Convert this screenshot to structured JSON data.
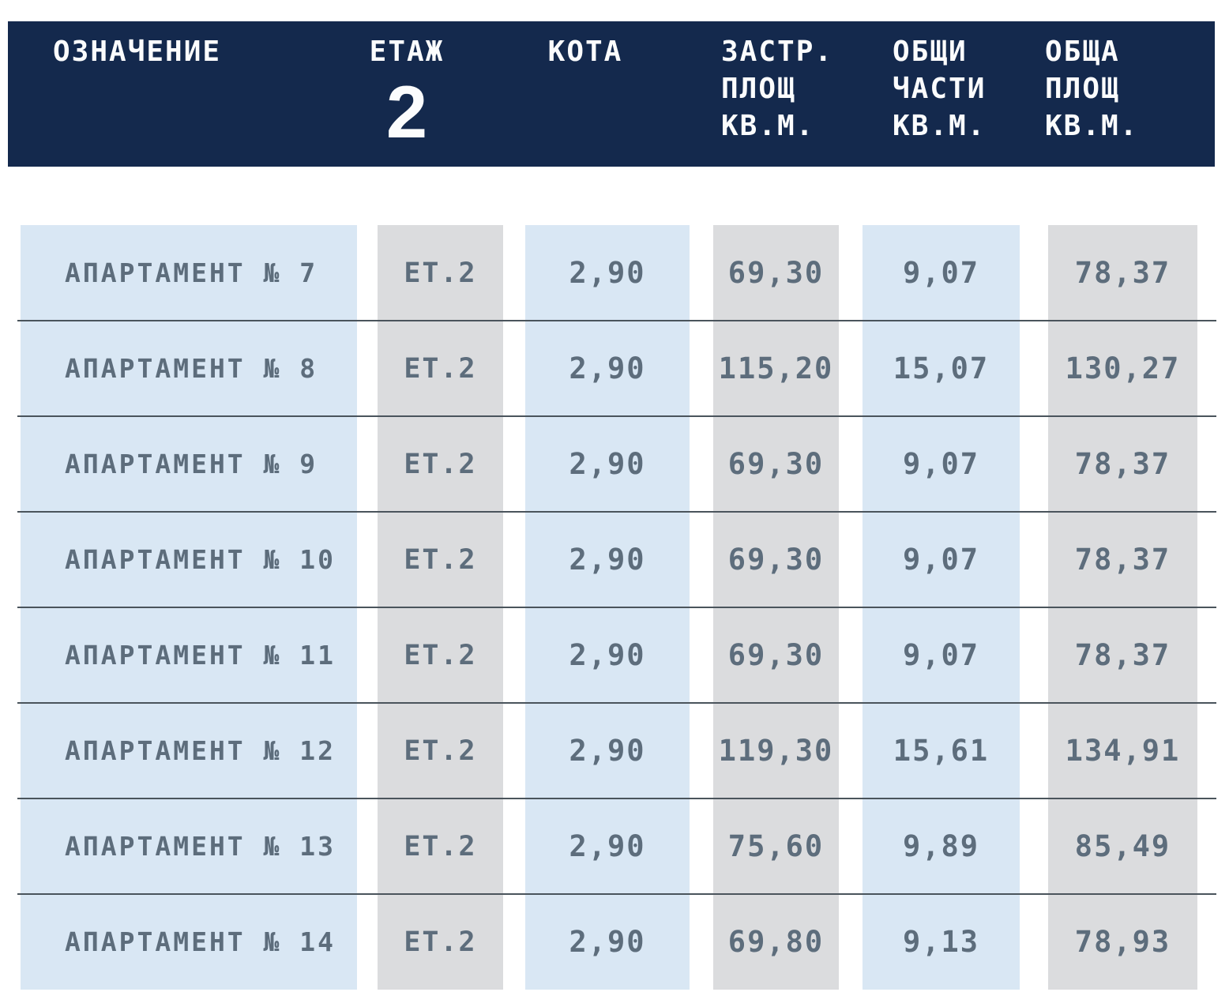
{
  "header": {
    "bg_color": "#14294d",
    "text_color": "#fbfcfd",
    "floor_big_number": "2",
    "col_designation": "ОЗНАЧЕНИЕ",
    "col_floor": "ЕТАЖ",
    "col_kota": "КОТА",
    "col_built_lines": [
      "ЗАСТР.",
      "ПЛОЩ",
      "КВ.М."
    ],
    "col_common_lines": [
      "ОБЩИ",
      "ЧАСТИ",
      "КВ.М."
    ],
    "col_total_lines": [
      "ОБЩА",
      "ПЛОЩ",
      "КВ.М."
    ]
  },
  "table": {
    "row_text_color": "#5d6d7c",
    "band_blue": "#d9e7f4",
    "band_gray": "#dbdcde",
    "divider_color": "#4a545c",
    "rows": [
      {
        "designation": "АПАРТАМЕНТ № 7",
        "floor": "ЕТ.2",
        "kota": "2,90",
        "built": "69,30",
        "common": "9,07",
        "total": "78,37"
      },
      {
        "designation": "АПАРТАМЕНТ № 8",
        "floor": "ЕТ.2",
        "kota": "2,90",
        "built": "115,20",
        "common": "15,07",
        "total": "130,27"
      },
      {
        "designation": "АПАРТАМЕНТ № 9",
        "floor": "ЕТ.2",
        "kota": "2,90",
        "built": "69,30",
        "common": "9,07",
        "total": "78,37"
      },
      {
        "designation": "АПАРТАМЕНТ № 10",
        "floor": "ЕТ.2",
        "kota": "2,90",
        "built": "69,30",
        "common": "9,07",
        "total": "78,37"
      },
      {
        "designation": "АПАРТАМЕНТ № 11",
        "floor": "ЕТ.2",
        "kota": "2,90",
        "built": "69,30",
        "common": "9,07",
        "total": "78,37"
      },
      {
        "designation": "АПАРТАМЕНТ № 12",
        "floor": "ЕТ.2",
        "kota": "2,90",
        "built": "119,30",
        "common": "15,61",
        "total": "134,91"
      },
      {
        "designation": "АПАРТАМЕНТ № 13",
        "floor": "ЕТ.2",
        "kota": "2,90",
        "built": "75,60",
        "common": "9,89",
        "total": "85,49"
      },
      {
        "designation": "АПАРТАМЕНТ № 14",
        "floor": "ЕТ.2",
        "kota": "2,90",
        "built": "69,80",
        "common": "9,13",
        "total": "78,93"
      }
    ]
  }
}
